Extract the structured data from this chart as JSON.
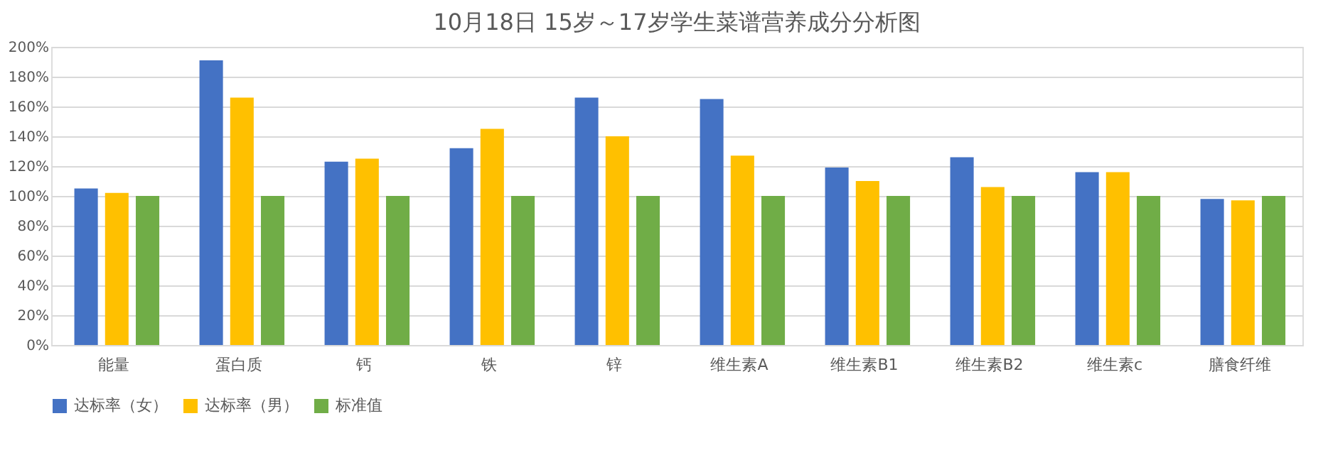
{
  "chart_data": {
    "type": "bar",
    "title": "10月18日 15岁～17岁学生菜谱营养成分分析图",
    "categories": [
      "能量",
      "蛋白质",
      "钙",
      "铁",
      "锌",
      "维生素A",
      "维生素B1",
      "维生素B2",
      "维生素c",
      "膳食纤维"
    ],
    "series": [
      {
        "name": "达标率（女）",
        "color": "#4472c4",
        "values": [
          105,
          191,
          123,
          132,
          166,
          165,
          119,
          126,
          116,
          98
        ]
      },
      {
        "name": "达标率（男）",
        "color": "#ffc000",
        "values": [
          102,
          166,
          125,
          145,
          140,
          127,
          110,
          106,
          116,
          97
        ]
      },
      {
        "name": "标准值",
        "color": "#70ad47",
        "values": [
          100,
          100,
          100,
          100,
          100,
          100,
          100,
          100,
          100,
          100
        ]
      }
    ],
    "ylim": [
      0,
      200
    ],
    "yticks": [
      {
        "value": 0,
        "label": "0%"
      },
      {
        "value": 20,
        "label": "20%"
      },
      {
        "value": 40,
        "label": "40%"
      },
      {
        "value": 60,
        "label": "60%"
      },
      {
        "value": 80,
        "label": "80%"
      },
      {
        "value": 100,
        "label": "100%"
      },
      {
        "value": 120,
        "label": "120%"
      },
      {
        "value": 140,
        "label": "140%"
      },
      {
        "value": 160,
        "label": "160%"
      },
      {
        "value": 180,
        "label": "180%"
      },
      {
        "value": 200,
        "label": "200%"
      }
    ],
    "grid": "y",
    "legend": "bottom"
  }
}
